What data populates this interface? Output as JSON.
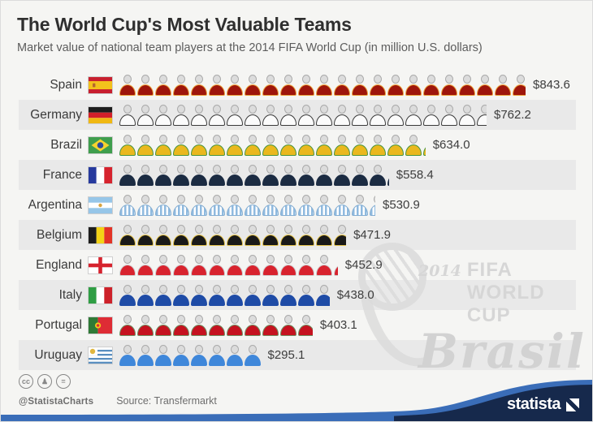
{
  "header": {
    "title": "The World Cup's Most Valuable Teams",
    "subtitle": "Market value of national team players at the 2014 FIFA World Cup (in million U.S. dollars)"
  },
  "chart_data": {
    "type": "bar",
    "subtype": "pictogram",
    "title": "The World Cup's Most Valuable Teams",
    "unit": "million U.S. dollars",
    "icon_value_millions": 37,
    "source": "Transfermarkt",
    "categories": [
      "Spain",
      "Germany",
      "Brazil",
      "France",
      "Argentina",
      "Belgium",
      "England",
      "Italy",
      "Portugal",
      "Uruguay"
    ],
    "values": [
      843.6,
      762.2,
      634.0,
      558.4,
      530.9,
      471.9,
      452.9,
      438.0,
      403.1,
      295.1
    ],
    "rows": [
      {
        "country": "Spain",
        "value": 843.6,
        "value_label": "$843.6",
        "flag_icon": "spain-flag-icon",
        "shirt": "#9e160c",
        "trim": "#eda53e",
        "striped": false
      },
      {
        "country": "Germany",
        "value": 762.2,
        "value_label": "$762.2",
        "flag_icon": "germany-flag-icon",
        "shirt": "#fbfbfb",
        "trim": "#3a3a3a",
        "striped": false
      },
      {
        "country": "Brazil",
        "value": 634.0,
        "value_label": "$634.0",
        "flag_icon": "brazil-flag-icon",
        "shirt": "#eab81e",
        "trim": "#48953f",
        "striped": false
      },
      {
        "country": "France",
        "value": 558.4,
        "value_label": "$558.4",
        "flag_icon": "france-flag-icon",
        "shirt": "#1b2b42",
        "trim": "#1b2b42",
        "striped": false
      },
      {
        "country": "Argentina",
        "value": 530.9,
        "value_label": "$530.9",
        "flag_icon": "argentina-flag-icon",
        "shirt": "#8fbadf",
        "trim": "#85aed2",
        "striped": true
      },
      {
        "country": "Belgium",
        "value": 471.9,
        "value_label": "$471.9",
        "flag_icon": "belgium-flag-icon",
        "shirt": "#191919",
        "trim": "#e5c44d",
        "striped": false
      },
      {
        "country": "England",
        "value": 452.9,
        "value_label": "$452.9",
        "flag_icon": "england-flag-icon",
        "shirt": "#d8232e",
        "trim": "#cfcfcf",
        "striped": false
      },
      {
        "country": "Italy",
        "value": 438.0,
        "value_label": "$438.0",
        "flag_icon": "italy-flag-icon",
        "shirt": "#1e4ba6",
        "trim": "#1e4ba6",
        "striped": false
      },
      {
        "country": "Portugal",
        "value": 403.1,
        "value_label": "$403.1",
        "flag_icon": "portugal-flag-icon",
        "shirt": "#c5121f",
        "trim": "#6f8f62",
        "striped": false
      },
      {
        "country": "Uruguay",
        "value": 295.1,
        "value_label": "$295.1",
        "flag_icon": "uruguay-flag-icon",
        "shirt": "#3f87da",
        "trim": "#3f87da",
        "striped": false
      }
    ]
  },
  "watermark": {
    "year": "2014",
    "line1": "FIFA WORLD CUP",
    "line2": "Brasil"
  },
  "footer": {
    "license_handle": "@StatistaCharts",
    "source": "Source: Transfermarkt",
    "brand": "statista",
    "cc_icons": [
      "cc",
      "by",
      "nd"
    ]
  },
  "colors": {
    "accent_blue": "#3a6db8",
    "brand_navy": "#16294c",
    "band_gray": "#e9e9e9",
    "value_text": "#3d3d3d",
    "watermark_gray": "#d6d6d6"
  }
}
